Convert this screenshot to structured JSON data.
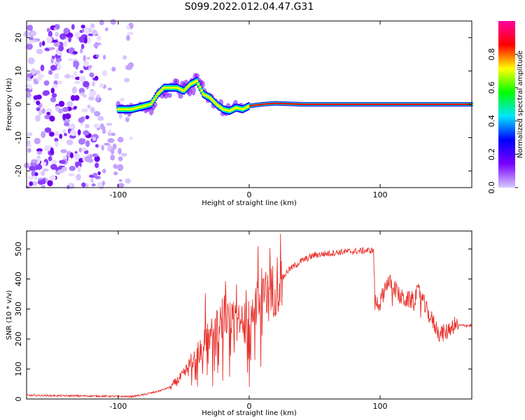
{
  "figure": {
    "title": "S099.2022.012.04.47.G31"
  },
  "chart_data": [
    {
      "type": "heatmap",
      "xlabel": "Height of straight line (km)",
      "ylabel": "Frequency (Hz)",
      "xlim": [
        -170,
        170
      ],
      "ylim": [
        -25,
        25
      ],
      "x_ticks": [
        -100,
        0,
        100
      ],
      "y_ticks": [
        -20,
        -10,
        0,
        10,
        20
      ],
      "noise_region_x": [
        -170,
        -90
      ],
      "signal_track": [
        {
          "x": -100,
          "y": -1.5
        },
        {
          "x": -90,
          "y": -1.5
        },
        {
          "x": -80,
          "y": -0.5
        },
        {
          "x": -75,
          "y": 0
        },
        {
          "x": -70,
          "y": 3
        },
        {
          "x": -65,
          "y": 5
        },
        {
          "x": -60,
          "y": 5
        },
        {
          "x": -55,
          "y": 5
        },
        {
          "x": -50,
          "y": 4
        },
        {
          "x": -45,
          "y": 6
        },
        {
          "x": -40,
          "y": 7
        },
        {
          "x": -35,
          "y": 3
        },
        {
          "x": -30,
          "y": 2
        },
        {
          "x": -25,
          "y": 0
        },
        {
          "x": -20,
          "y": -1.5
        },
        {
          "x": -15,
          "y": -2
        },
        {
          "x": -10,
          "y": -1
        },
        {
          "x": -5,
          "y": -1.5
        },
        {
          "x": 0,
          "y": -0.5
        },
        {
          "x": 10,
          "y": 0
        },
        {
          "x": 20,
          "y": 0.3
        },
        {
          "x": 40,
          "y": 0
        },
        {
          "x": 100,
          "y": 0
        },
        {
          "x": 170,
          "y": 0
        }
      ]
    },
    {
      "type": "colorbar",
      "label": "Normalized spectral amplitude",
      "range": [
        0,
        1
      ],
      "ticks": [
        "0.0",
        "0.2",
        "0.4",
        "0.6",
        "0.8"
      ],
      "colors": [
        "#d6c9ff",
        "#7a00ff",
        "#0000ff",
        "#00e5ff",
        "#00ff00",
        "#ffff00",
        "#ff0000",
        "#ff00a0"
      ]
    },
    {
      "type": "line",
      "xlabel": "Height of straight line (km)",
      "ylabel": "SNR (10 * v/v)",
      "xlim": [
        -170,
        170
      ],
      "ylim": [
        0,
        560
      ],
      "x_ticks": [
        -100,
        0,
        100
      ],
      "y_ticks": [
        0,
        100,
        200,
        300,
        400,
        500
      ],
      "color": "#e8322c",
      "envelope": [
        {
          "x": -170,
          "y": 12
        },
        {
          "x": -120,
          "y": 10
        },
        {
          "x": -90,
          "y": 8
        },
        {
          "x": -80,
          "y": 15
        },
        {
          "x": -70,
          "y": 25
        },
        {
          "x": -60,
          "y": 40
        },
        {
          "x": -50,
          "y": 80
        },
        {
          "x": -40,
          "y": 150
        },
        {
          "x": -30,
          "y": 210
        },
        {
          "x": -25,
          "y": 250
        },
        {
          "x": -20,
          "y": 280
        },
        {
          "x": -15,
          "y": 280
        },
        {
          "x": -10,
          "y": 240
        },
        {
          "x": -5,
          "y": 270
        },
        {
          "x": 0,
          "y": 230
        },
        {
          "x": 5,
          "y": 320
        },
        {
          "x": 10,
          "y": 360
        },
        {
          "x": 15,
          "y": 330
        },
        {
          "x": 20,
          "y": 380
        },
        {
          "x": 25,
          "y": 400
        },
        {
          "x": 30,
          "y": 430
        },
        {
          "x": 40,
          "y": 460
        },
        {
          "x": 50,
          "y": 480
        },
        {
          "x": 60,
          "y": 485
        },
        {
          "x": 70,
          "y": 490
        },
        {
          "x": 80,
          "y": 492
        },
        {
          "x": 90,
          "y": 495
        },
        {
          "x": 95,
          "y": 495
        },
        {
          "x": 96,
          "y": 320
        },
        {
          "x": 100,
          "y": 320
        },
        {
          "x": 105,
          "y": 390
        },
        {
          "x": 110,
          "y": 380
        },
        {
          "x": 115,
          "y": 340
        },
        {
          "x": 120,
          "y": 330
        },
        {
          "x": 125,
          "y": 330
        },
        {
          "x": 130,
          "y": 360
        },
        {
          "x": 135,
          "y": 300
        },
        {
          "x": 140,
          "y": 260
        },
        {
          "x": 145,
          "y": 220
        },
        {
          "x": 150,
          "y": 220
        },
        {
          "x": 155,
          "y": 245
        },
        {
          "x": 170,
          "y": 245
        }
      ]
    }
  ]
}
